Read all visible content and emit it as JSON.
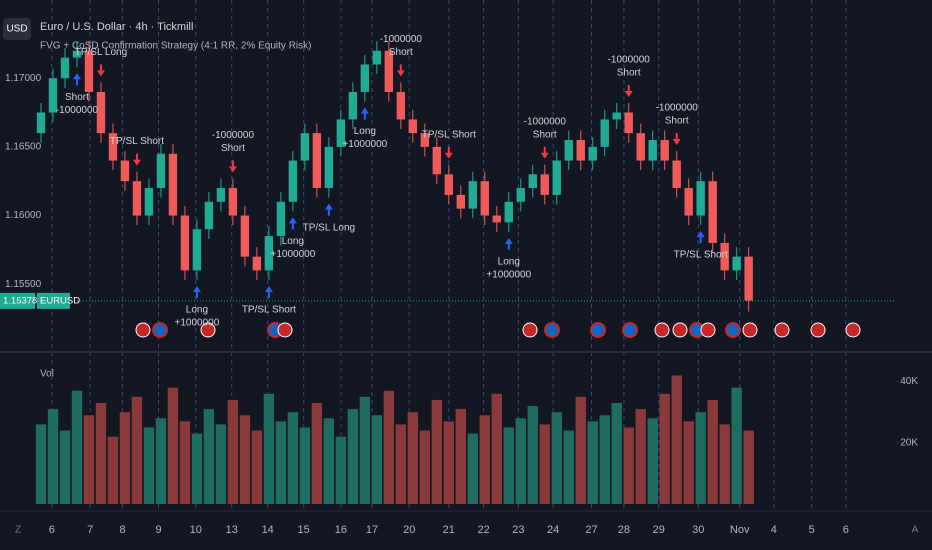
{
  "header": {
    "button": "USD",
    "title": "Euro / U.S. Dollar · 4h · Tickmill",
    "strategy": "FVG + CoSD Confirmation Strategy (4:1 RR, 2% Equity Risk)",
    "symbol": "EURUSD",
    "left_corner": "Z",
    "right_corner": "A"
  },
  "chart_data": [
    {
      "type": "candlestick",
      "up_color": "#22ab94",
      "down_color": "#f05a5a",
      "open": [
        1.166,
        1.1675,
        1.17,
        1.1715,
        1.172,
        1.169,
        1.166,
        1.164,
        1.1625,
        1.16,
        1.162,
        1.1645,
        1.16,
        1.156,
        1.159,
        1.161,
        1.162,
        1.16,
        1.157,
        1.156,
        1.1585,
        1.161,
        1.164,
        1.166,
        1.162,
        1.165,
        1.167,
        1.169,
        1.171,
        1.172,
        1.169,
        1.167,
        1.166,
        1.165,
        1.163,
        1.1615,
        1.1605,
        1.1625,
        1.16,
        1.1595,
        1.161,
        1.162,
        1.163,
        1.1615,
        1.164,
        1.1655,
        1.164,
        1.165,
        1.167,
        1.1675,
        1.166,
        1.164,
        1.1655,
        1.164,
        1.162,
        1.16,
        1.1625,
        1.158,
        1.156,
        1.157
      ],
      "high": [
        1.1682,
        1.1707,
        1.1722,
        1.1727,
        1.1727,
        1.1697,
        1.1667,
        1.1647,
        1.1632,
        1.1627,
        1.1652,
        1.1652,
        1.1607,
        1.1597,
        1.1617,
        1.1627,
        1.1627,
        1.1607,
        1.1577,
        1.1592,
        1.1617,
        1.1647,
        1.1667,
        1.1667,
        1.1657,
        1.1677,
        1.1697,
        1.1717,
        1.1727,
        1.1727,
        1.1697,
        1.1677,
        1.1667,
        1.1657,
        1.1637,
        1.1622,
        1.1632,
        1.1632,
        1.1607,
        1.1617,
        1.1627,
        1.1637,
        1.1637,
        1.1647,
        1.1662,
        1.1662,
        1.1657,
        1.1677,
        1.1682,
        1.1682,
        1.1667,
        1.1662,
        1.1662,
        1.1647,
        1.1627,
        1.1632,
        1.1632,
        1.1587,
        1.1577,
        1.1577
      ],
      "low": [
        1.1653,
        1.1668,
        1.1693,
        1.1708,
        1.1683,
        1.1653,
        1.1633,
        1.1618,
        1.1593,
        1.1593,
        1.1613,
        1.1593,
        1.1553,
        1.1553,
        1.1583,
        1.1603,
        1.1593,
        1.1563,
        1.1553,
        1.1553,
        1.1578,
        1.1603,
        1.1633,
        1.1613,
        1.1613,
        1.1643,
        1.1663,
        1.1683,
        1.1703,
        1.1683,
        1.1663,
        1.1653,
        1.1643,
        1.1623,
        1.1608,
        1.1598,
        1.1598,
        1.1593,
        1.1588,
        1.1588,
        1.1603,
        1.1613,
        1.1608,
        1.1608,
        1.1633,
        1.1633,
        1.1633,
        1.1643,
        1.1663,
        1.1653,
        1.1633,
        1.1633,
        1.1633,
        1.1613,
        1.1593,
        1.1593,
        1.1573,
        1.1553,
        1.1553,
        1.153
      ],
      "close": [
        1.1675,
        1.17,
        1.1715,
        1.172,
        1.169,
        1.166,
        1.164,
        1.1625,
        1.16,
        1.162,
        1.1645,
        1.16,
        1.156,
        1.159,
        1.161,
        1.162,
        1.16,
        1.157,
        1.156,
        1.1585,
        1.161,
        1.164,
        1.166,
        1.162,
        1.165,
        1.167,
        1.169,
        1.171,
        1.172,
        1.169,
        1.167,
        1.166,
        1.165,
        1.163,
        1.1615,
        1.1605,
        1.1625,
        1.16,
        1.1595,
        1.161,
        1.162,
        1.163,
        1.1615,
        1.164,
        1.1655,
        1.164,
        1.165,
        1.167,
        1.1675,
        1.166,
        1.164,
        1.1655,
        1.164,
        1.162,
        1.16,
        1.1625,
        1.158,
        1.156,
        1.157,
        1.1538
      ],
      "last_price": 1.15378,
      "ylim": [
        1.1502,
        1.1757
      ],
      "yticks": [
        {
          "value": 1.17,
          "label": "1.17000"
        },
        {
          "value": 1.165,
          "label": "1.16500"
        },
        {
          "value": 1.16,
          "label": "1.16000"
        },
        {
          "value": 1.155,
          "label": "1.15500"
        }
      ],
      "xlim": [
        0,
        71.7
      ],
      "xticks": [
        {
          "value": 1.4,
          "label": "6"
        },
        {
          "value": 4.6,
          "label": "7"
        },
        {
          "value": 7.3,
          "label": "8"
        },
        {
          "value": 10.3,
          "label": "9"
        },
        {
          "value": 13.4,
          "label": "10"
        },
        {
          "value": 16.4,
          "label": "13"
        },
        {
          "value": 19.4,
          "label": "14"
        },
        {
          "value": 22.4,
          "label": "15"
        },
        {
          "value": 25.5,
          "label": "16"
        },
        {
          "value": 28.1,
          "label": "17"
        },
        {
          "value": 31.2,
          "label": "20"
        },
        {
          "value": 34.5,
          "label": "21"
        },
        {
          "value": 37.4,
          "label": "22"
        },
        {
          "value": 40.3,
          "label": "23"
        },
        {
          "value": 43.2,
          "label": "24"
        },
        {
          "value": 46.4,
          "label": "27"
        },
        {
          "value": 49.1,
          "label": "28"
        },
        {
          "value": 52,
          "label": "29"
        },
        {
          "value": 55.3,
          "label": "30"
        },
        {
          "value": 58.75,
          "label": "Nov"
        },
        {
          "value": 61.6,
          "label": "4"
        },
        {
          "value": 64.75,
          "label": "5"
        },
        {
          "value": 67.6,
          "label": "6"
        }
      ],
      "grid": true,
      "signals": [
        {
          "candle": 3,
          "label": "Short",
          "qty": "-1000000"
        },
        {
          "candle": 5,
          "label": "TP/SL Long"
        },
        {
          "candle": 8,
          "label": "TP/SL Short"
        },
        {
          "candle": 13,
          "label": "Long",
          "qty": "+1000000"
        },
        {
          "candle": 16,
          "label": "Short",
          "qty": "-1000000"
        },
        {
          "candle": 19,
          "label": "TP/SL Short"
        },
        {
          "candle": 21,
          "label": "Long",
          "qty": "+1000000"
        },
        {
          "candle": 24,
          "label": "TP/SL Long"
        },
        {
          "candle": 27,
          "label": "Long",
          "qty": "+1000000"
        },
        {
          "candle": 30,
          "label": "Short",
          "qty": "-1000000"
        },
        {
          "candle": 34,
          "label": "TP/SL Short"
        },
        {
          "candle": 39,
          "label": "Long",
          "qty": "+1000000"
        },
        {
          "candle": 42,
          "label": "Short",
          "qty": "-1000000"
        },
        {
          "candle": 49,
          "label": "Short",
          "qty": "-1000000"
        },
        {
          "candle": 53,
          "label": "Short",
          "qty": "-1000000"
        },
        {
          "candle": 55,
          "label": "TP/SL Short"
        }
      ]
    },
    {
      "type": "bar",
      "title": "Vol",
      "up_color": "#1f6c63",
      "down_color": "#8a3a3b",
      "values": [
        26000,
        31000,
        24000,
        37000,
        29000,
        33000,
        22000,
        30000,
        35000,
        25000,
        28000,
        38000,
        27000,
        23000,
        31000,
        26000,
        34000,
        29000,
        24000,
        36000,
        27000,
        30000,
        25000,
        33000,
        28000,
        22000,
        31000,
        35000,
        29000,
        37000,
        26000,
        30000,
        24000,
        34000,
        27000,
        31000,
        23000,
        29000,
        36000,
        25000,
        28000,
        32000,
        26000,
        30000,
        24000,
        35000,
        27000,
        29000,
        33000,
        25000,
        31000,
        28000,
        36000,
        42000,
        27000,
        30000,
        34000,
        26000,
        38000,
        24000
      ],
      "ylim": [
        0,
        49000
      ],
      "yticks": [
        {
          "value": 40000,
          "label": "40K"
        },
        {
          "value": 20000,
          "label": "20K"
        }
      ]
    }
  ]
}
